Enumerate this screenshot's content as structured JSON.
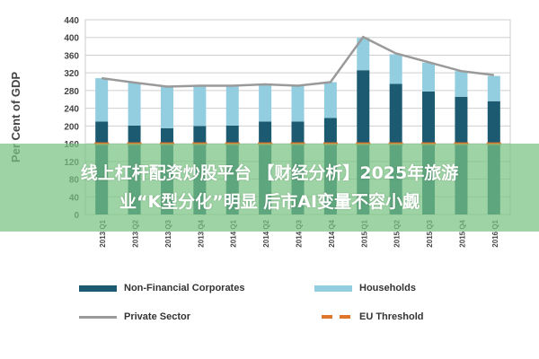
{
  "chart_data": {
    "type": "bar",
    "stacked": true,
    "title": "",
    "xlabel": "",
    "ylabel": "Per Cent of GDP",
    "ylim": [
      0,
      440
    ],
    "yticks": [
      0,
      40,
      80,
      120,
      160,
      200,
      240,
      280,
      320,
      360,
      400,
      440
    ],
    "grid": true,
    "legend_position": "bottom",
    "categories": [
      "2013 Q1",
      "2013 Q2",
      "2013 Q3",
      "2013 Q4",
      "2014 Q1",
      "2014 Q2",
      "2014 Q3",
      "2014 Q4",
      "2015 Q1",
      "2015 Q2",
      "2015 Q3",
      "2015 Q4",
      "2016 Q1"
    ],
    "series": [
      {
        "name": "Non-Financial Corporates",
        "type": "bar",
        "color": "#1b5a70",
        "values": [
          210,
          201,
          195,
          200,
          201,
          210,
          210,
          218,
          326,
          295,
          278,
          266,
          256
        ]
      },
      {
        "name": "Households",
        "type": "bar",
        "color": "#92cde0",
        "values": [
          98,
          96,
          94,
          90,
          89,
          83,
          80,
          81,
          73,
          67,
          65,
          58,
          57
        ]
      },
      {
        "name": "Private Sector",
        "type": "line",
        "color": "#9a9a9a",
        "values": [
          308,
          298,
          289,
          291,
          291,
          294,
          291,
          299,
          401,
          364,
          344,
          324,
          315
        ]
      },
      {
        "name": "EU Threshold",
        "type": "dash",
        "color": "#e0762a",
        "values": [
          160,
          160,
          160,
          160,
          160,
          160,
          160,
          160,
          160,
          160,
          160,
          160,
          160
        ]
      }
    ]
  },
  "banner": {
    "line1": "线上杠杆配资炒股平台 【财经分析】2025年旅游",
    "line2": "业“K型分化”明显 后市AI变量不容小觑"
  }
}
